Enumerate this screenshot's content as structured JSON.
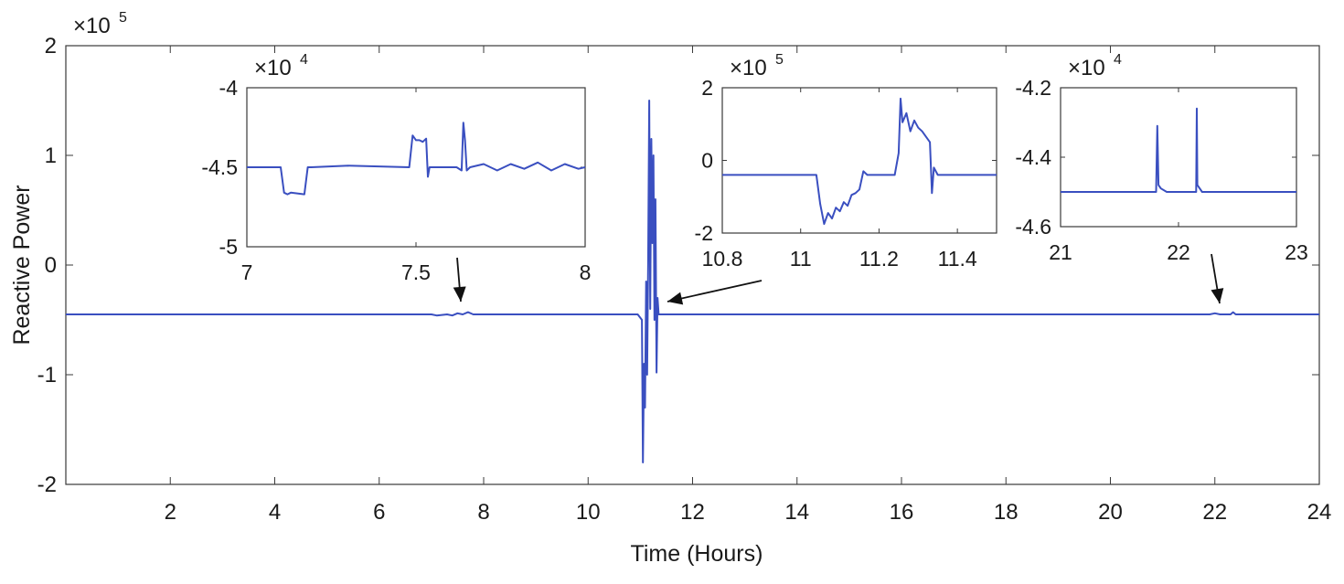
{
  "chart_data": [
    {
      "type": "line",
      "title": "",
      "xlabel": "Time (Hours)",
      "ylabel": "Reactive Power",
      "y_exponent": "5",
      "xlim": [
        0,
        24
      ],
      "ylim": [
        -2,
        2
      ],
      "xticks": [
        2,
        4,
        6,
        8,
        10,
        12,
        14,
        16,
        18,
        20,
        22,
        24
      ],
      "yticks": [
        2,
        1,
        0,
        -1,
        -2
      ],
      "grid": false,
      "series": [
        {
          "color": "#3a4fc0",
          "x": [
            0,
            7.0,
            7.1,
            7.3,
            7.4,
            7.5,
            7.6,
            7.7,
            7.8,
            8.0,
            10.95,
            11.03,
            11.05,
            11.07,
            11.09,
            11.11,
            11.13,
            11.15,
            11.17,
            11.19,
            11.21,
            11.23,
            11.25,
            11.27,
            11.29,
            11.31,
            11.33,
            11.35,
            11.4,
            21.9,
            22.0,
            22.1,
            22.3,
            22.35,
            22.4,
            24
          ],
          "y": [
            -0.45,
            -0.45,
            -0.46,
            -0.45,
            -0.46,
            -0.44,
            -0.45,
            -0.43,
            -0.45,
            -0.45,
            -0.45,
            -0.5,
            -1.8,
            -0.9,
            -1.3,
            -0.15,
            -1.0,
            0.0,
            1.5,
            -0.4,
            1.15,
            0.2,
            1.0,
            -0.5,
            0.6,
            -0.98,
            -0.3,
            -0.45,
            -0.45,
            -0.45,
            -0.44,
            -0.45,
            -0.45,
            -0.43,
            -0.45,
            -0.45
          ]
        }
      ]
    },
    {
      "type": "line",
      "title": "",
      "xlabel": "",
      "ylabel": "",
      "y_exponent": "4",
      "xlim": [
        7,
        8
      ],
      "ylim": [
        -5,
        -4
      ],
      "xticks": [
        "7",
        "7.5",
        "8"
      ],
      "xtick_values": [
        7,
        7.5,
        8
      ],
      "yticks": [
        "-4",
        "-4.5",
        "-5"
      ],
      "ytick_values": [
        -4,
        -4.5,
        -5
      ],
      "grid": false,
      "series": [
        {
          "color": "#3a4fc0",
          "x": [
            7.0,
            7.1,
            7.11,
            7.12,
            7.13,
            7.17,
            7.18,
            7.19,
            7.3,
            7.48,
            7.49,
            7.5,
            7.51,
            7.52,
            7.53,
            7.535,
            7.54,
            7.55,
            7.56,
            7.62,
            7.635,
            7.64,
            7.645,
            7.65,
            7.66,
            7.7,
            7.74,
            7.78,
            7.82,
            7.86,
            7.9,
            7.94,
            7.98,
            8.0
          ],
          "y": [
            -4.5,
            -4.5,
            -4.66,
            -4.67,
            -4.66,
            -4.67,
            -4.5,
            -4.5,
            -4.49,
            -4.5,
            -4.3,
            -4.33,
            -4.33,
            -4.34,
            -4.32,
            -4.56,
            -4.5,
            -4.5,
            -4.5,
            -4.5,
            -4.52,
            -4.22,
            -4.33,
            -4.52,
            -4.5,
            -4.48,
            -4.52,
            -4.48,
            -4.51,
            -4.47,
            -4.52,
            -4.48,
            -4.51,
            -4.5
          ]
        }
      ]
    },
    {
      "type": "line",
      "title": "",
      "xlabel": "",
      "ylabel": "",
      "y_exponent": "5",
      "xlim": [
        10.8,
        11.5
      ],
      "ylim": [
        -2,
        2
      ],
      "xticks": [
        "10.8",
        "11",
        "11.2",
        "11.4"
      ],
      "xtick_values": [
        10.8,
        11.0,
        11.2,
        11.4
      ],
      "yticks": [
        "2",
        "0",
        "-2"
      ],
      "ytick_values": [
        2,
        0,
        -2
      ],
      "grid": false,
      "series": [
        {
          "color": "#3a4fc0",
          "x": [
            10.8,
            11.04,
            11.05,
            11.06,
            11.07,
            11.08,
            11.09,
            11.1,
            11.11,
            11.12,
            11.13,
            11.14,
            11.15,
            11.16,
            11.17,
            11.2,
            11.24,
            11.25,
            11.255,
            11.26,
            11.27,
            11.28,
            11.29,
            11.3,
            11.31,
            11.33,
            11.335,
            11.34,
            11.35,
            11.5
          ],
          "y": [
            -0.4,
            -0.4,
            -1.2,
            -1.75,
            -1.45,
            -1.6,
            -1.3,
            -1.4,
            -1.15,
            -1.25,
            -0.95,
            -0.9,
            -0.8,
            -0.3,
            -0.4,
            -0.4,
            -0.4,
            0.2,
            1.7,
            1.05,
            1.3,
            0.8,
            1.1,
            0.9,
            0.8,
            0.5,
            -0.9,
            -0.2,
            -0.4,
            -0.4
          ]
        }
      ]
    },
    {
      "type": "line",
      "title": "",
      "xlabel": "",
      "ylabel": "",
      "y_exponent": "4",
      "xlim": [
        21,
        23
      ],
      "ylim": [
        -4.6,
        -4.2
      ],
      "xticks": [
        "21",
        "22",
        "23"
      ],
      "xtick_values": [
        21,
        22,
        23
      ],
      "yticks": [
        "-4.2",
        "-4.4",
        "-4.6"
      ],
      "ytick_values": [
        -4.2,
        -4.4,
        -4.6
      ],
      "grid": false,
      "series": [
        {
          "color": "#3a4fc0",
          "x": [
            21.0,
            21.8,
            21.81,
            21.82,
            21.83,
            21.85,
            21.9,
            22.14,
            22.15,
            22.155,
            22.16,
            22.18,
            22.2,
            23.0
          ],
          "y": [
            -4.5,
            -4.5,
            -4.5,
            -4.31,
            -4.48,
            -4.49,
            -4.5,
            -4.5,
            -4.5,
            -4.26,
            -4.48,
            -4.49,
            -4.5,
            -4.5
          ]
        }
      ]
    }
  ]
}
